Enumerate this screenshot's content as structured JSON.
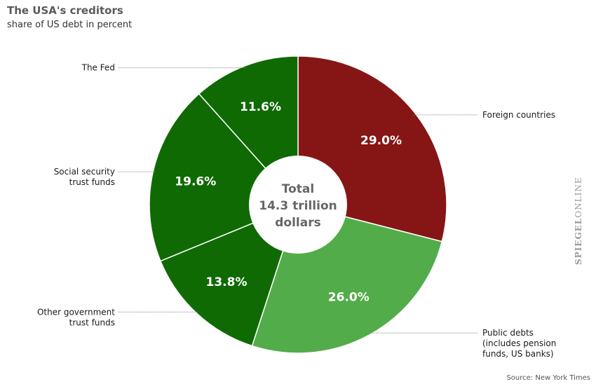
{
  "header": {
    "title": "The USA's creditors",
    "subtitle": "share of US debt in percent"
  },
  "footer": {
    "source": "Source: New York Times",
    "watermark_bold": "SPIEGEL",
    "watermark_rest": "ONLINE"
  },
  "chart_data": {
    "type": "pie",
    "title": "The USA's creditors",
    "subtitle": "share of US debt in percent",
    "center_label": [
      "Total",
      "14.3 trillion",
      "dollars"
    ],
    "slices": [
      {
        "name": "Foreign countries",
        "label_lines": [
          "Foreign countries"
        ],
        "value": 29.0,
        "display": "29.0%",
        "color": "#851615",
        "side": "right"
      },
      {
        "name": "Public debts (includes pension funds, US banks)",
        "label_lines": [
          "Public debts",
          "(includes pension",
          "funds, US banks)"
        ],
        "value": 26.0,
        "display": "26.0%",
        "color": "#52ac4a",
        "side": "right"
      },
      {
        "name": "Other government trust funds",
        "label_lines": [
          "Other government",
          "trust funds"
        ],
        "value": 13.8,
        "display": "13.8%",
        "color": "#0f6a03",
        "side": "left"
      },
      {
        "name": "Social security trust funds",
        "label_lines": [
          "Social security",
          "trust funds"
        ],
        "value": 19.6,
        "display": "19.6%",
        "color": "#0f6a03",
        "side": "left"
      },
      {
        "name": "The Fed",
        "label_lines": [
          "The Fed"
        ],
        "value": 11.6,
        "display": "11.6%",
        "color": "#0f6a03",
        "side": "left"
      }
    ]
  }
}
